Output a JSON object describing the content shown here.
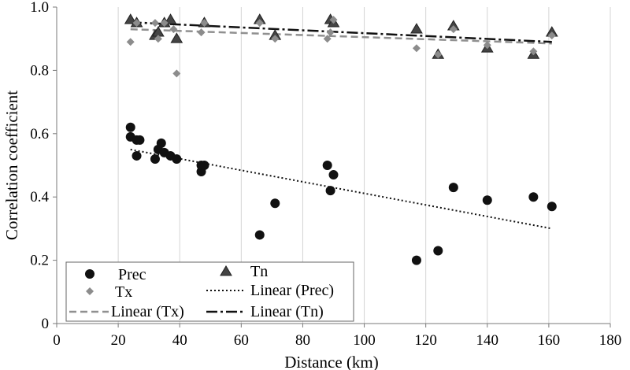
{
  "chart_data": {
    "type": "scatter",
    "title": "",
    "xlabel": "Distance (km)",
    "ylabel": "Correlation coefficient",
    "xlim": [
      0,
      180
    ],
    "ylim": [
      0,
      1
    ],
    "xticks": [
      0,
      20,
      40,
      60,
      80,
      100,
      120,
      140,
      160,
      180
    ],
    "yticks": [
      0,
      0.2,
      0.4,
      0.6,
      0.8,
      1
    ],
    "xtick_labels": [
      "0",
      "20",
      "40",
      "60",
      "80",
      "100",
      "120",
      "140",
      "160",
      "180"
    ],
    "ytick_labels": [
      "0",
      "0.2",
      "0.4",
      "0.6",
      "0.8",
      "1.0"
    ],
    "grid": "vertical",
    "legend_position": "bottom-left",
    "series": [
      {
        "name": "Prec",
        "marker": "circle",
        "color": "#111111",
        "points": [
          [
            24,
            0.62
          ],
          [
            24,
            0.59
          ],
          [
            26,
            0.53
          ],
          [
            26,
            0.58
          ],
          [
            27,
            0.58
          ],
          [
            32,
            0.52
          ],
          [
            33,
            0.55
          ],
          [
            34,
            0.57
          ],
          [
            35,
            0.54
          ],
          [
            37,
            0.53
          ],
          [
            39,
            0.52
          ],
          [
            47,
            0.48
          ],
          [
            47,
            0.5
          ],
          [
            48,
            0.5
          ],
          [
            66,
            0.28
          ],
          [
            71,
            0.38
          ],
          [
            88,
            0.5
          ],
          [
            89,
            0.42
          ],
          [
            90,
            0.47
          ],
          [
            117,
            0.2
          ],
          [
            124,
            0.23
          ],
          [
            129,
            0.43
          ],
          [
            140,
            0.39
          ],
          [
            155,
            0.4
          ],
          [
            161,
            0.37
          ]
        ]
      },
      {
        "name": "Tn",
        "marker": "triangle",
        "color": "#444444",
        "points": [
          [
            24,
            0.96
          ],
          [
            26,
            0.95
          ],
          [
            32,
            0.91
          ],
          [
            33,
            0.92
          ],
          [
            35,
            0.95
          ],
          [
            37,
            0.96
          ],
          [
            39,
            0.9
          ],
          [
            48,
            0.95
          ],
          [
            66,
            0.96
          ],
          [
            71,
            0.91
          ],
          [
            89,
            0.96
          ],
          [
            90,
            0.95
          ],
          [
            117,
            0.93
          ],
          [
            124,
            0.85
          ],
          [
            129,
            0.94
          ],
          [
            140,
            0.87
          ],
          [
            155,
            0.85
          ],
          [
            161,
            0.92
          ]
        ]
      },
      {
        "name": "Tx",
        "marker": "diamond",
        "color": "#8c8c8c",
        "points": [
          [
            24,
            0.89
          ],
          [
            26,
            0.95
          ],
          [
            32,
            0.95
          ],
          [
            33,
            0.9
          ],
          [
            35,
            0.95
          ],
          [
            38,
            0.93
          ],
          [
            39,
            0.79
          ],
          [
            47,
            0.92
          ],
          [
            48,
            0.95
          ],
          [
            66,
            0.95
          ],
          [
            71,
            0.9
          ],
          [
            88,
            0.9
          ],
          [
            89,
            0.92
          ],
          [
            90,
            0.96
          ],
          [
            117,
            0.87
          ],
          [
            124,
            0.85
          ],
          [
            129,
            0.93
          ],
          [
            140,
            0.88
          ],
          [
            155,
            0.86
          ],
          [
            161,
            0.91
          ]
        ]
      }
    ],
    "trendlines": [
      {
        "name": "Linear (Prec)",
        "style": "dotted",
        "color": "#111111",
        "from": [
          24,
          0.55
        ],
        "to": [
          161,
          0.3
        ]
      },
      {
        "name": "Linear (Tx)",
        "style": "dashed",
        "color": "#909090",
        "from": [
          24,
          0.93
        ],
        "to": [
          161,
          0.885
        ]
      },
      {
        "name": "Linear (Tn)",
        "style": "dashdot",
        "color": "#111111",
        "from": [
          24,
          0.952
        ],
        "to": [
          161,
          0.89
        ]
      }
    ],
    "legend": [
      {
        "label": "Prec",
        "kind": "marker",
        "marker": "circle",
        "color": "#111111"
      },
      {
        "label": "Tn",
        "kind": "marker",
        "marker": "triangle",
        "color": "#444444"
      },
      {
        "label": "Tx",
        "kind": "marker",
        "marker": "diamond",
        "color": "#8c8c8c"
      },
      {
        "label": "Linear (Prec)",
        "kind": "line",
        "style": "dotted",
        "color": "#111111"
      },
      {
        "label": "Linear (Tx)",
        "kind": "line",
        "style": "dashed",
        "color": "#909090"
      },
      {
        "label": "Linear (Tn)",
        "kind": "line",
        "style": "dashdot",
        "color": "#111111"
      }
    ]
  }
}
